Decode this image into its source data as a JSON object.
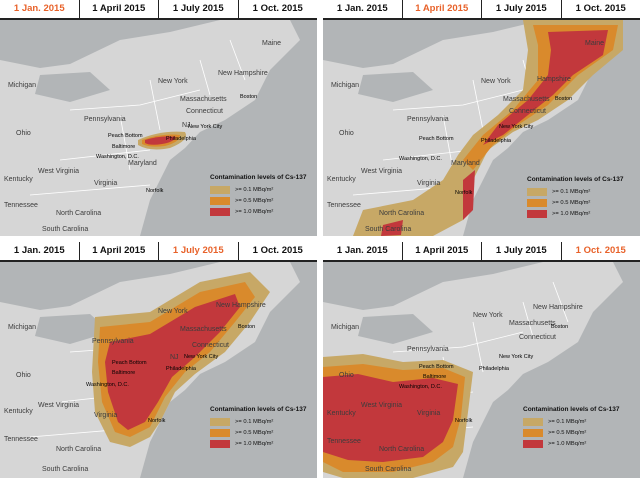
{
  "colors": {
    "level_low": "#c7a866",
    "level_mid": "#d98a2c",
    "level_high": "#c2383c",
    "active_date": "#e8622a",
    "water": "#b2b5b7",
    "land": "#d6d6d6"
  },
  "panels": [
    {
      "dates": [
        "1 Jan. 2015",
        "1 April 2015",
        "1 July 2015",
        "1 Oct. 2015"
      ],
      "active_index": 0,
      "state_labels": [
        "Michigan",
        "Maine",
        "New York",
        "New Hampshire",
        "Massachusetts",
        "Connecticut",
        "Ohio",
        "Pennsylvania",
        "NJ",
        "Maryland",
        "West Virginia",
        "Virginia",
        "Kentucky",
        "Tennessee",
        "North Carolina",
        "South Carolina"
      ],
      "city_labels": [
        "Boston",
        "New York City",
        "Peach Bottom",
        "Philadelphia",
        "Baltimore",
        "Washington, D.C.",
        "Norfolk"
      ],
      "legend": {
        "title": "Contamination levels of Cs-137",
        "items": [
          ">= 0.1 MBq/m²",
          ">= 0.5 MBq/m²",
          ">= 1.0 MBq/m²"
        ]
      }
    },
    {
      "dates": [
        "1 Jan. 2015",
        "1 April 2015",
        "1 July 2015",
        "1 Oct. 2015"
      ],
      "active_index": 1,
      "state_labels": [
        "Maine",
        "New York",
        "Michigan",
        "Hampshire",
        "Massachusetts",
        "Pennsylvania",
        "Ohio",
        "Connecticut",
        "Maryland",
        "Virginia",
        "West Virginia",
        "Kentucky",
        "Tennessee",
        "North Carolina",
        "South Carolina"
      ],
      "city_labels": [
        "Boston",
        "New York City",
        "Peach Bottom",
        "Philadelphia",
        "Washington, D.C.",
        "Norfolk"
      ],
      "legend": {
        "title": "Contamination levels of Cs-137",
        "items": [
          ">= 0.1 MBq/m²",
          ">= 0.5 MBq/m²",
          ">= 1.0 MBq/m²"
        ]
      }
    },
    {
      "dates": [
        "1 Jan. 2015",
        "1 April 2015",
        "1 July 2015",
        "1 Oct. 2015"
      ],
      "active_index": 2,
      "state_labels": [
        "Michigan",
        "New York",
        "New Hampshire",
        "Pennsylvania",
        "Massachusetts",
        "Ohio",
        "Connecticut",
        "NJ",
        "West Virginia",
        "Virginia",
        "Kentucky",
        "Tennessee",
        "North Carolina",
        "South Carolina"
      ],
      "city_labels": [
        "Boston",
        "New York City",
        "Peach Bottom",
        "Baltimore",
        "Philadelphia",
        "Washington, D.C.",
        "Norfolk"
      ],
      "legend": {
        "title": "Contamination levels of Cs-137",
        "items": [
          ">= 0.1 MBq/m²",
          ">= 0.5 MBq/m²",
          ">= 1.0 MBq/m²"
        ]
      }
    },
    {
      "dates": [
        "1 Jan. 2015",
        "1 April 2015",
        "1 July 2015",
        "1 Oct. 2015"
      ],
      "active_index": 3,
      "state_labels": [
        "New York",
        "New Hampshire",
        "Massachusetts",
        "Connecticut",
        "Michigan",
        "Pennsylvania",
        "Ohio",
        "West Virginia",
        "Virginia",
        "Kentucky",
        "Tennessee",
        "North Carolina",
        "South Carolina"
      ],
      "city_labels": [
        "Boston",
        "New York City",
        "Peach Bottom",
        "Baltimore",
        "Philadelphia",
        "Washington, D.C.",
        "Norfolk"
      ],
      "legend": {
        "title": "Contamination levels of Cs-137",
        "items": [
          ">= 0.1 MBq/m²",
          ">= 0.5 MBq/m²",
          ">= 1.0 MBq/m²"
        ]
      }
    }
  ]
}
